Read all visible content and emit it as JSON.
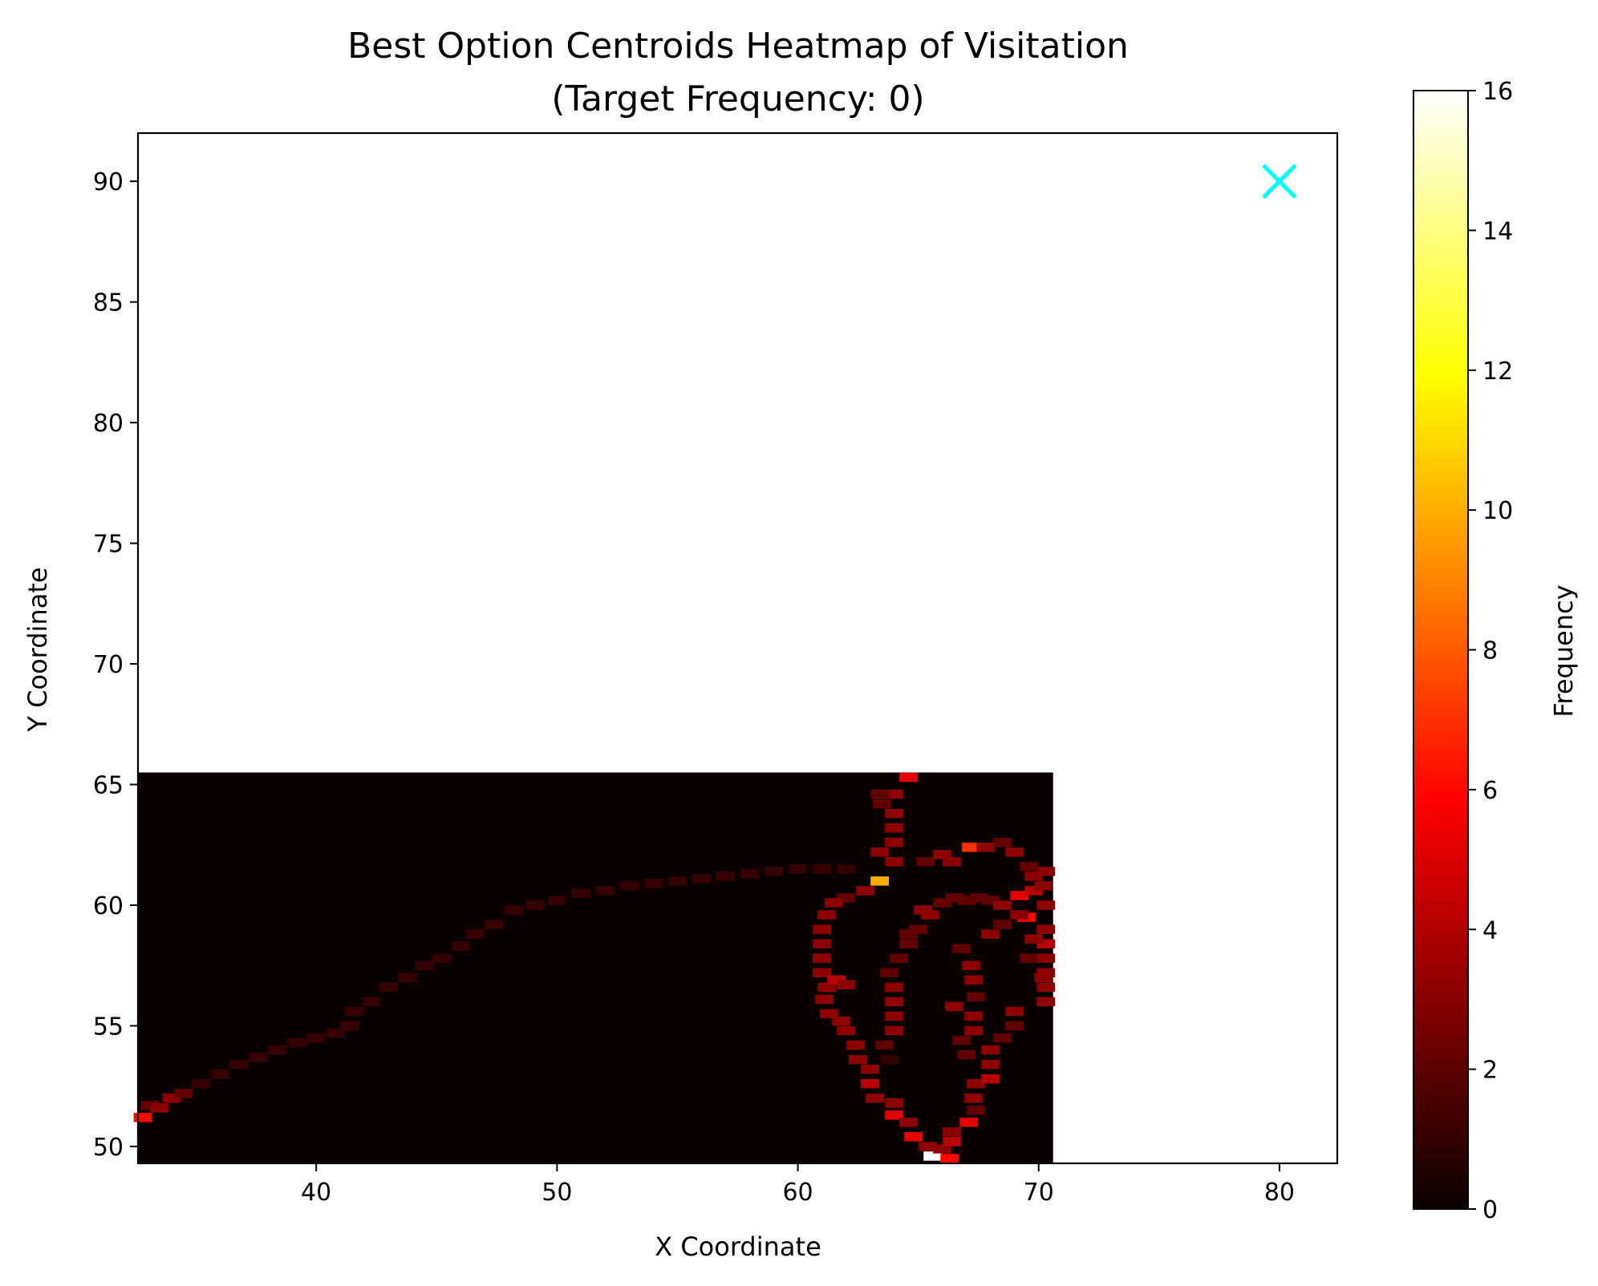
{
  "chart_data": {
    "type": "heatmap",
    "title_line1": "Best Option Centroids Heatmap of Visitation",
    "title_line2": "(Target Frequency: 0)",
    "xlabel": "X Coordinate",
    "ylabel": "Y Coordinate",
    "xlim": [
      32.6,
      82.4
    ],
    "ylim": [
      49.3,
      92.0
    ],
    "xticks": [
      40,
      50,
      60,
      70,
      80
    ],
    "yticks": [
      50,
      55,
      60,
      65,
      70,
      75,
      80,
      85,
      90
    ],
    "grid": false,
    "heatmap_extent": {
      "x": [
        32.6,
        70.6
      ],
      "y": [
        49.3,
        65.5
      ]
    },
    "cell_size": 0.76,
    "colormap": "hot",
    "colorbar": {
      "label": "Frequency",
      "min": 0,
      "max": 16,
      "ticks": [
        0,
        2,
        4,
        6,
        8,
        10,
        12,
        14,
        16
      ]
    },
    "target": {
      "x": 80,
      "y": 90,
      "marker": "x",
      "color": "#00ffff"
    },
    "cells": [
      [
        32.8,
        51.2,
        6
      ],
      [
        33.1,
        51.7,
        2
      ],
      [
        33.5,
        51.6,
        3
      ],
      [
        34.0,
        52.0,
        3
      ],
      [
        34.5,
        52.2,
        2
      ],
      [
        35.2,
        52.6,
        1
      ],
      [
        36.0,
        53.0,
        1
      ],
      [
        36.8,
        53.4,
        1
      ],
      [
        37.6,
        53.7,
        1
      ],
      [
        38.4,
        54.0,
        1
      ],
      [
        39.2,
        54.3,
        1
      ],
      [
        40.0,
        54.5,
        1
      ],
      [
        40.8,
        54.7,
        1
      ],
      [
        41.4,
        55.0,
        1
      ],
      [
        41.6,
        55.6,
        1
      ],
      [
        42.3,
        56.0,
        1
      ],
      [
        43.0,
        56.6,
        1
      ],
      [
        43.8,
        57.0,
        1
      ],
      [
        44.5,
        57.5,
        1
      ],
      [
        45.2,
        57.8,
        1
      ],
      [
        46.0,
        58.3,
        1
      ],
      [
        46.6,
        58.8,
        1
      ],
      [
        47.4,
        59.2,
        1
      ],
      [
        48.2,
        59.8,
        1
      ],
      [
        49.1,
        60.0,
        1
      ],
      [
        50.0,
        60.2,
        1
      ],
      [
        51.0,
        60.5,
        1
      ],
      [
        52.0,
        60.6,
        1
      ],
      [
        53.0,
        60.8,
        1
      ],
      [
        54.0,
        60.9,
        1
      ],
      [
        55.0,
        61.0,
        1
      ],
      [
        56.0,
        61.1,
        1
      ],
      [
        57.0,
        61.2,
        1
      ],
      [
        58.0,
        61.3,
        1
      ],
      [
        59.0,
        61.4,
        1
      ],
      [
        60.0,
        61.5,
        1
      ],
      [
        61.0,
        61.5,
        1
      ],
      [
        62.0,
        61.5,
        1
      ],
      [
        63.4,
        61.0,
        10
      ],
      [
        62.8,
        60.6,
        3
      ],
      [
        62.0,
        60.3,
        2
      ],
      [
        61.5,
        60.1,
        3
      ],
      [
        61.2,
        59.6,
        3
      ],
      [
        61.0,
        59.0,
        3
      ],
      [
        61.0,
        58.4,
        3
      ],
      [
        61.0,
        57.8,
        3
      ],
      [
        61.0,
        57.2,
        3
      ],
      [
        61.2,
        56.6,
        3
      ],
      [
        61.6,
        56.9,
        4
      ],
      [
        62.0,
        56.7,
        3
      ],
      [
        61.1,
        56.1,
        3
      ],
      [
        61.3,
        55.5,
        3
      ],
      [
        61.8,
        55.2,
        3
      ],
      [
        62.0,
        54.8,
        3
      ],
      [
        62.4,
        54.2,
        3
      ],
      [
        62.5,
        53.6,
        3
      ],
      [
        63.0,
        53.2,
        3
      ],
      [
        63.0,
        52.6,
        4
      ],
      [
        63.2,
        52.0,
        3
      ],
      [
        64.0,
        51.8,
        3
      ],
      [
        64.0,
        51.3,
        5
      ],
      [
        64.6,
        51.0,
        3
      ],
      [
        64.8,
        50.4,
        5
      ],
      [
        65.4,
        50.0,
        3
      ],
      [
        65.6,
        49.6,
        16
      ],
      [
        66.0,
        49.9,
        3
      ],
      [
        66.3,
        49.5,
        6
      ],
      [
        66.4,
        50.2,
        4
      ],
      [
        66.4,
        50.6,
        3
      ],
      [
        67.1,
        51.0,
        5
      ],
      [
        67.4,
        51.5,
        2
      ],
      [
        67.3,
        52.0,
        3
      ],
      [
        67.4,
        52.6,
        3
      ],
      [
        68.0,
        52.8,
        4
      ],
      [
        68.0,
        53.4,
        3
      ],
      [
        68.0,
        54.0,
        3
      ],
      [
        68.5,
        54.5,
        2
      ],
      [
        69.0,
        55.0,
        2
      ],
      [
        69.0,
        55.6,
        3
      ],
      [
        63.8,
        53.6,
        1
      ],
      [
        63.6,
        54.2,
        2
      ],
      [
        64.0,
        54.8,
        3
      ],
      [
        64.0,
        55.4,
        3
      ],
      [
        64.0,
        56.0,
        3
      ],
      [
        64.0,
        56.6,
        3
      ],
      [
        63.8,
        57.2,
        2
      ],
      [
        64.2,
        57.8,
        2
      ],
      [
        64.6,
        58.4,
        2
      ],
      [
        65.0,
        59.0,
        2
      ],
      [
        65.5,
        59.6,
        3
      ],
      [
        66.0,
        60.1,
        2
      ],
      [
        66.5,
        60.3,
        2
      ],
      [
        67.0,
        60.2,
        2
      ],
      [
        67.5,
        60.3,
        2
      ],
      [
        68.0,
        60.2,
        2
      ],
      [
        68.5,
        60.0,
        3
      ],
      [
        69.2,
        60.4,
        5
      ],
      [
        69.8,
        60.6,
        4
      ],
      [
        70.2,
        60.8,
        3
      ],
      [
        70.3,
        60.0,
        3
      ],
      [
        69.5,
        59.5,
        6
      ],
      [
        70.3,
        59.0,
        3
      ],
      [
        70.3,
        58.4,
        4
      ],
      [
        70.3,
        57.8,
        3
      ],
      [
        70.3,
        57.2,
        3
      ],
      [
        70.3,
        56.6,
        3
      ],
      [
        70.3,
        56.0,
        3
      ],
      [
        69.8,
        61.2,
        3
      ],
      [
        70.3,
        61.4,
        3
      ],
      [
        63.4,
        62.2,
        3
      ],
      [
        64.0,
        61.8,
        3
      ],
      [
        64.0,
        62.6,
        3
      ],
      [
        64.0,
        63.2,
        3
      ],
      [
        64.0,
        63.8,
        3
      ],
      [
        63.5,
        64.2,
        2
      ],
      [
        64.0,
        64.6,
        3
      ],
      [
        64.6,
        65.3,
        5
      ],
      [
        63.4,
        64.6,
        2
      ],
      [
        65.3,
        61.8,
        2
      ],
      [
        66.0,
        62.1,
        3
      ],
      [
        66.4,
        61.8,
        3
      ],
      [
        67.2,
        62.4,
        7
      ],
      [
        67.8,
        62.4,
        3
      ],
      [
        68.5,
        62.6,
        2
      ],
      [
        69.0,
        62.2,
        3
      ],
      [
        69.6,
        61.6,
        2
      ],
      [
        65.2,
        59.8,
        3
      ],
      [
        64.6,
        58.8,
        2
      ],
      [
        66.8,
        58.2,
        2
      ],
      [
        67.2,
        57.5,
        3
      ],
      [
        67.3,
        56.9,
        3
      ],
      [
        67.4,
        56.2,
        2
      ],
      [
        66.5,
        55.8,
        3
      ],
      [
        67.3,
        55.4,
        3
      ],
      [
        67.3,
        54.8,
        3
      ],
      [
        66.8,
        54.4,
        2
      ],
      [
        67.0,
        53.8,
        2
      ],
      [
        68.0,
        58.8,
        3
      ],
      [
        68.5,
        59.2,
        2
      ],
      [
        69.2,
        59.6,
        3
      ],
      [
        69.8,
        58.6,
        3
      ],
      [
        69.6,
        57.8,
        2
      ],
      [
        70.2,
        57.0,
        3
      ]
    ]
  }
}
